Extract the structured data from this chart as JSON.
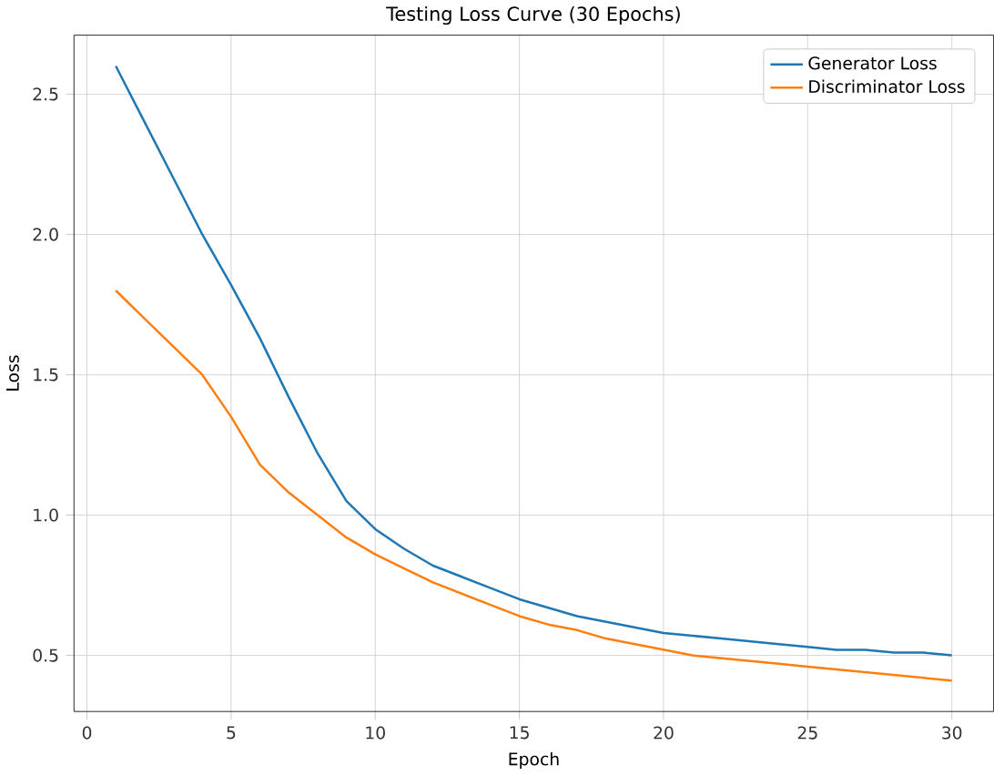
{
  "chart_data": {
    "type": "line",
    "title": "Testing Loss Curve (30 Epochs)",
    "xlabel": "Epoch",
    "ylabel": "Loss",
    "x": [
      1,
      2,
      3,
      4,
      5,
      6,
      7,
      8,
      9,
      10,
      11,
      12,
      13,
      14,
      15,
      16,
      17,
      18,
      19,
      20,
      21,
      22,
      23,
      24,
      25,
      26,
      27,
      28,
      29,
      30
    ],
    "series": [
      {
        "name": "Generator Loss",
        "color": "#1f77b4",
        "values": [
          2.6,
          2.4,
          2.2,
          2.0,
          1.82,
          1.63,
          1.42,
          1.22,
          1.05,
          0.95,
          0.88,
          0.82,
          0.78,
          0.74,
          0.7,
          0.67,
          0.64,
          0.62,
          0.6,
          0.58,
          0.57,
          0.56,
          0.55,
          0.54,
          0.53,
          0.52,
          0.52,
          0.51,
          0.51,
          0.5
        ]
      },
      {
        "name": "Discriminator Loss",
        "color": "#ff7f0e",
        "values": [
          1.8,
          1.7,
          1.6,
          1.5,
          1.35,
          1.18,
          1.08,
          1.0,
          0.92,
          0.86,
          0.81,
          0.76,
          0.72,
          0.68,
          0.64,
          0.61,
          0.59,
          0.56,
          0.54,
          0.52,
          0.5,
          0.49,
          0.48,
          0.47,
          0.46,
          0.45,
          0.44,
          0.43,
          0.42,
          0.41
        ]
      }
    ],
    "xlim": [
      -0.45,
      31.45
    ],
    "ylim": [
      0.3,
      2.71
    ],
    "xticks": [
      0,
      5,
      10,
      15,
      20,
      25,
      30
    ],
    "yticks": [
      0.5,
      {
        "value": 1.0,
        "label": "1.0"
      },
      1.5,
      {
        "value": 2.0,
        "label": "2.0"
      },
      2.5
    ],
    "grid": true,
    "legend": "top right",
    "marker": "none",
    "line_style": "solid"
  }
}
